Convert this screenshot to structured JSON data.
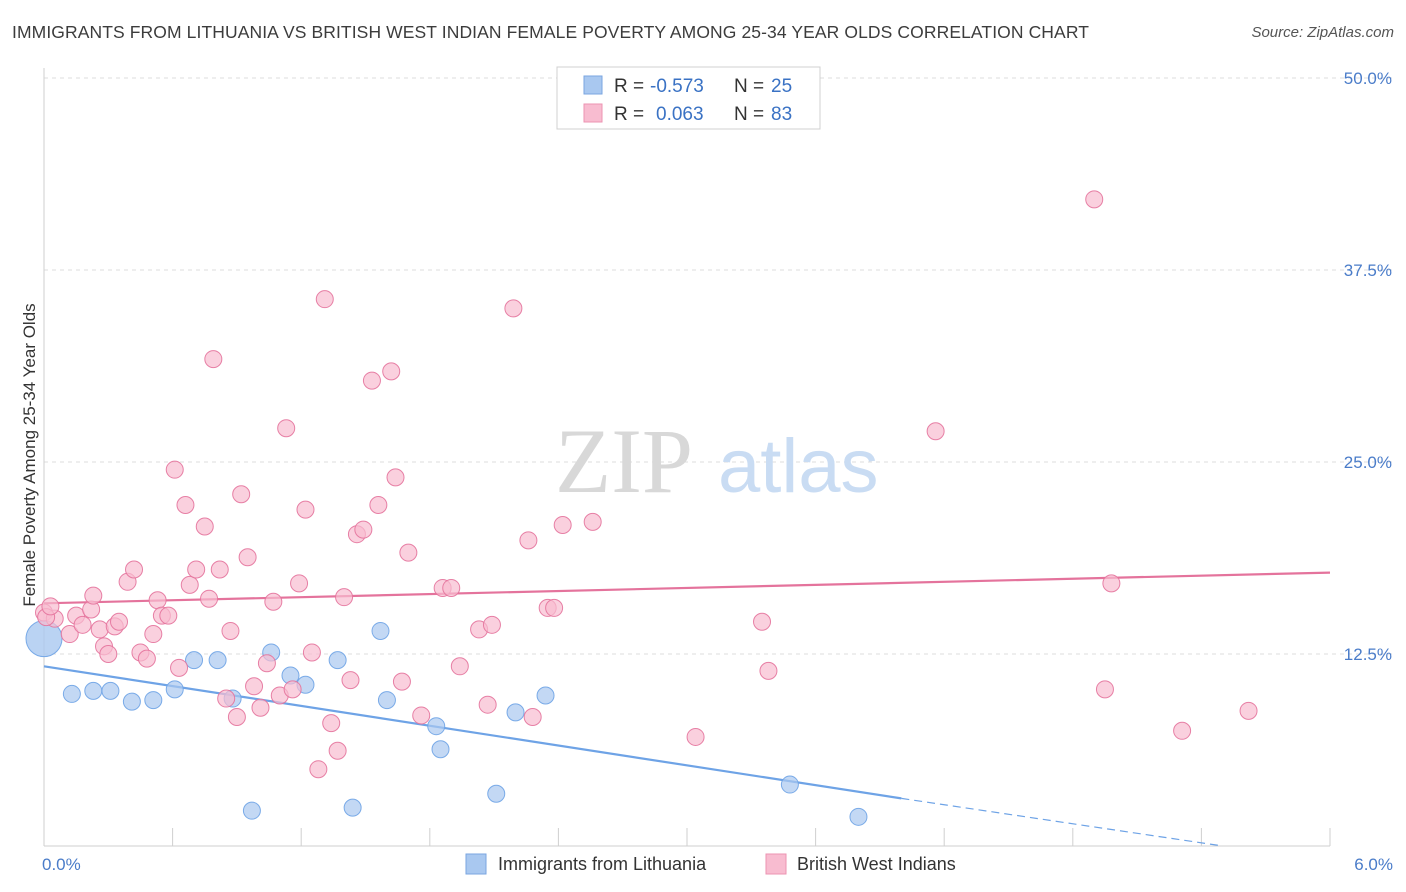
{
  "title": "IMMIGRANTS FROM LITHUANIA VS BRITISH WEST INDIAN FEMALE POVERTY AMONG 25-34 YEAR OLDS CORRELATION CHART",
  "source": "Source: ZipAtlas.com",
  "watermark": {
    "zip": "ZIP",
    "atlas": "atlas"
  },
  "legend_box": {
    "rows": [
      {
        "r_label": "R =",
        "r_value": "-0.573",
        "n_label": "N =",
        "n_value": "25",
        "color": "#a9c8f0"
      },
      {
        "r_label": "R =",
        "r_value": "0.063",
        "n_label": "N =",
        "n_value": "83",
        "color": "#f8bcd0"
      }
    ]
  },
  "chart_data": {
    "type": "scatter",
    "title": "IMMIGRANTS FROM LITHUANIA VS BRITISH WEST INDIAN FEMALE POVERTY AMONG 25-34 YEAR OLDS CORRELATION CHART",
    "xlabel": "",
    "ylabel": "Female Poverty Among 25-34 Year Olds",
    "xlim": [
      0,
      6.0
    ],
    "ylim": [
      0,
      50.0
    ],
    "x_tick_labels": [
      "0.0%",
      "6.0%"
    ],
    "y_tick_labels": [
      "12.5%",
      "25.0%",
      "37.5%",
      "50.0%"
    ],
    "y_ticks": [
      12.5,
      25.0,
      37.5,
      50.0
    ],
    "grid": true,
    "legend_position": "bottom-center",
    "series": [
      {
        "name": "Immigrants from Lithuania",
        "color": "#6ea3e6",
        "fill": "#a9c8f0",
        "trend": {
          "x": [
            0.0,
            4.0
          ],
          "y": [
            11.7,
            3.1
          ],
          "dashed_to": [
            5.5,
            0.0
          ]
        },
        "points": [
          [
            0.0,
            13.5
          ],
          [
            0.13,
            9.9
          ],
          [
            0.23,
            10.1
          ],
          [
            0.31,
            10.1
          ],
          [
            0.41,
            9.4
          ],
          [
            0.51,
            9.5
          ],
          [
            0.61,
            10.2
          ],
          [
            0.7,
            12.1
          ],
          [
            0.81,
            12.1
          ],
          [
            0.88,
            9.6
          ],
          [
            0.97,
            2.3
          ],
          [
            1.06,
            12.6
          ],
          [
            1.15,
            11.1
          ],
          [
            1.22,
            10.5
          ],
          [
            1.37,
            12.1
          ],
          [
            1.44,
            2.5
          ],
          [
            1.57,
            14.0
          ],
          [
            1.6,
            9.5
          ],
          [
            1.83,
            7.8
          ],
          [
            1.85,
            6.3
          ],
          [
            2.11,
            3.4
          ],
          [
            2.2,
            8.7
          ],
          [
            2.34,
            9.8
          ],
          [
            3.48,
            4.0
          ],
          [
            3.8,
            1.9
          ]
        ]
      },
      {
        "name": "British West Indians",
        "color": "#e4739c",
        "fill": "#f8bcd0",
        "trend": {
          "x": [
            0.0,
            6.0
          ],
          "y": [
            15.8,
            17.8
          ]
        },
        "points": [
          [
            0.0,
            15.2
          ],
          [
            0.05,
            14.8
          ],
          [
            0.12,
            13.8
          ],
          [
            0.15,
            15.0
          ],
          [
            0.18,
            14.4
          ],
          [
            0.22,
            15.4
          ],
          [
            0.23,
            16.3
          ],
          [
            0.26,
            14.1
          ],
          [
            0.28,
            13.0
          ],
          [
            0.3,
            12.5
          ],
          [
            0.33,
            14.3
          ],
          [
            0.35,
            14.6
          ],
          [
            0.39,
            17.2
          ],
          [
            0.42,
            18.0
          ],
          [
            0.45,
            12.6
          ],
          [
            0.48,
            12.2
          ],
          [
            0.51,
            13.8
          ],
          [
            0.53,
            16.0
          ],
          [
            0.55,
            15.0
          ],
          [
            0.58,
            15.0
          ],
          [
            0.61,
            24.5
          ],
          [
            0.63,
            11.6
          ],
          [
            0.66,
            22.2
          ],
          [
            0.68,
            17.0
          ],
          [
            0.71,
            18.0
          ],
          [
            0.75,
            20.8
          ],
          [
            0.77,
            16.1
          ],
          [
            0.79,
            31.7
          ],
          [
            0.82,
            18.0
          ],
          [
            0.85,
            9.6
          ],
          [
            0.87,
            14.0
          ],
          [
            0.9,
            8.4
          ],
          [
            0.92,
            22.9
          ],
          [
            0.95,
            18.8
          ],
          [
            0.98,
            10.4
          ],
          [
            1.01,
            9.0
          ],
          [
            1.04,
            11.9
          ],
          [
            1.07,
            15.9
          ],
          [
            1.1,
            9.8
          ],
          [
            1.13,
            27.2
          ],
          [
            1.16,
            10.2
          ],
          [
            1.19,
            17.1
          ],
          [
            1.22,
            21.9
          ],
          [
            1.25,
            12.6
          ],
          [
            1.28,
            5.0
          ],
          [
            1.31,
            35.6
          ],
          [
            1.34,
            8.0
          ],
          [
            1.37,
            6.2
          ],
          [
            1.4,
            16.2
          ],
          [
            1.43,
            10.8
          ],
          [
            1.46,
            20.3
          ],
          [
            1.49,
            20.6
          ],
          [
            1.53,
            30.3
          ],
          [
            1.56,
            22.2
          ],
          [
            1.62,
            30.9
          ],
          [
            1.64,
            24.0
          ],
          [
            1.67,
            10.7
          ],
          [
            1.7,
            19.1
          ],
          [
            1.76,
            8.5
          ],
          [
            1.86,
            16.8
          ],
          [
            1.9,
            16.8
          ],
          [
            1.94,
            11.7
          ],
          [
            2.03,
            14.1
          ],
          [
            2.07,
            9.2
          ],
          [
            2.09,
            14.4
          ],
          [
            2.19,
            35.0
          ],
          [
            2.26,
            19.9
          ],
          [
            2.28,
            8.4
          ],
          [
            2.35,
            15.5
          ],
          [
            2.38,
            15.5
          ],
          [
            2.42,
            20.9
          ],
          [
            2.56,
            21.1
          ],
          [
            3.04,
            7.1
          ],
          [
            3.35,
            14.6
          ],
          [
            3.38,
            11.4
          ],
          [
            4.16,
            27.0
          ],
          [
            4.9,
            42.1
          ],
          [
            4.95,
            10.2
          ],
          [
            4.98,
            17.1
          ],
          [
            5.31,
            7.5
          ],
          [
            5.62,
            8.8
          ],
          [
            0.01,
            14.9
          ],
          [
            0.03,
            15.6
          ]
        ]
      }
    ]
  }
}
